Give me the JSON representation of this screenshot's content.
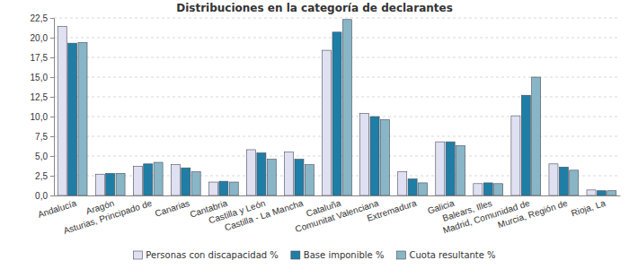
{
  "chart_data": {
    "type": "bar",
    "title": "Distribuciones en la categoría de declarantes",
    "categories": [
      "Andalucía",
      "Aragón",
      "Asturias, Principado de",
      "Canarias",
      "Cantabria",
      "Castilla y León",
      "Castilla - La Mancha",
      "Cataluña",
      "Comunitat Valenciana",
      "Extremadura",
      "Galicia",
      "Balears, Illes",
      "Madrid, Comunidad de",
      "Murcia, Región de",
      "Rioja, La"
    ],
    "series": [
      {
        "name": "Personas con discapacidad %",
        "color": "#dfe1f2",
        "values": [
          21.4,
          2.7,
          3.7,
          3.9,
          1.7,
          5.8,
          5.5,
          18.4,
          10.4,
          3.0,
          6.8,
          1.5,
          10.1,
          4.0,
          0.7
        ]
      },
      {
        "name": "Base imponible %",
        "color": "#1f7ea5",
        "values": [
          19.3,
          2.8,
          4.0,
          3.5,
          1.8,
          5.4,
          4.6,
          20.7,
          10.0,
          2.1,
          6.8,
          1.6,
          12.7,
          3.6,
          0.6
        ]
      },
      {
        "name": "Cuota resultante %",
        "color": "#88b6c6",
        "values": [
          19.4,
          2.8,
          4.2,
          3.0,
          1.7,
          4.6,
          3.9,
          22.3,
          9.6,
          1.6,
          6.3,
          1.5,
          15.0,
          3.2,
          0.6
        ]
      }
    ],
    "ylim": [
      0,
      22.5
    ],
    "yticks": [
      {
        "value": 0,
        "label": "0,0"
      },
      {
        "value": 2.5,
        "label": "2,5"
      },
      {
        "value": 5,
        "label": "5,0"
      },
      {
        "value": 7.5,
        "label": "7,5"
      },
      {
        "value": 10,
        "label": "10,0"
      },
      {
        "value": 12.5,
        "label": "12,5"
      },
      {
        "value": 15,
        "label": "15,0"
      },
      {
        "value": 17.5,
        "label": "17,5"
      },
      {
        "value": 20,
        "label": "20,0"
      },
      {
        "value": 22.5,
        "label": "22,5"
      }
    ],
    "grid": true,
    "legend": "bottom"
  }
}
